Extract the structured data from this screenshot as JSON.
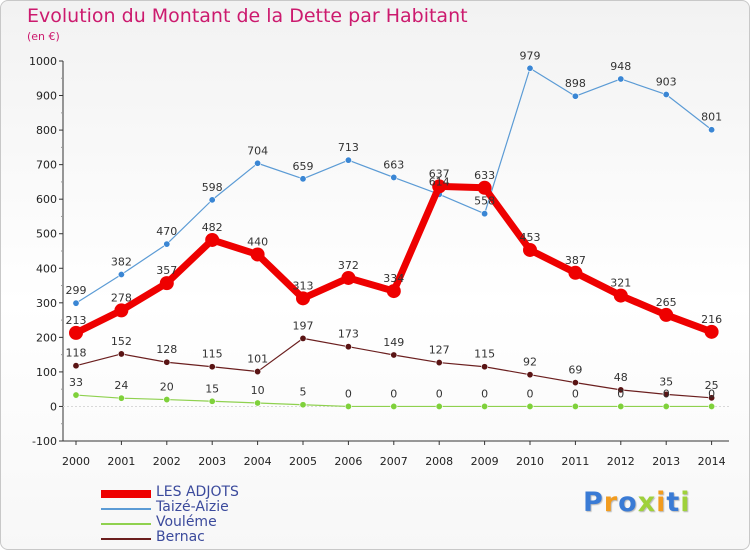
{
  "header": {
    "title": "Evolution du Montant de la Dette par Habitant",
    "subtitle": "(en €)"
  },
  "logo": {
    "text": "Proxiti",
    "colors": [
      "#3a7bd5",
      "#f29c1f",
      "#3a7bd5",
      "#9fd13b",
      "#f29c1f",
      "#3a7bd5",
      "#9fd13b"
    ]
  },
  "chart_data": {
    "type": "line",
    "title": "Evolution du Montant de la Dette par Habitant",
    "ylabel": "(en €)",
    "ylim": [
      -100,
      1000
    ],
    "yticks": [
      -100,
      0,
      100,
      200,
      300,
      400,
      500,
      600,
      700,
      800,
      900,
      1000
    ],
    "x": [
      "2000",
      "2001",
      "2002",
      "2003",
      "2004",
      "2005",
      "2006",
      "2007",
      "2008",
      "2009",
      "2010",
      "2011",
      "2012",
      "2013",
      "2014"
    ],
    "grid": false,
    "legend_position": "bottom-left",
    "series": [
      {
        "name": "Taizé-Aizie",
        "color": "#5b9bd5",
        "values": [
          299,
          382,
          470,
          598,
          704,
          659,
          713,
          663,
          614,
          558,
          979,
          898,
          948,
          903,
          801
        ]
      },
      {
        "name": "Vouléme",
        "color": "#8fd14f",
        "values": [
          33,
          24,
          20,
          15,
          10,
          5,
          0,
          0,
          0,
          0,
          0,
          0,
          0,
          0,
          0
        ]
      },
      {
        "name": "Bernac",
        "color": "#6b1f1f",
        "values": [
          118,
          152,
          128,
          115,
          101,
          197,
          173,
          149,
          127,
          115,
          92,
          69,
          48,
          35,
          25
        ]
      },
      {
        "name": "LES ADJOTS",
        "color": "#ee0000",
        "values": [
          213,
          278,
          357,
          482,
          440,
          313,
          372,
          334,
          637,
          633,
          453,
          387,
          321,
          265,
          216
        ]
      }
    ],
    "legend_order": [
      "LES ADJOTS",
      "Taizé-Aizie",
      "Vouléme",
      "Bernac"
    ]
  }
}
